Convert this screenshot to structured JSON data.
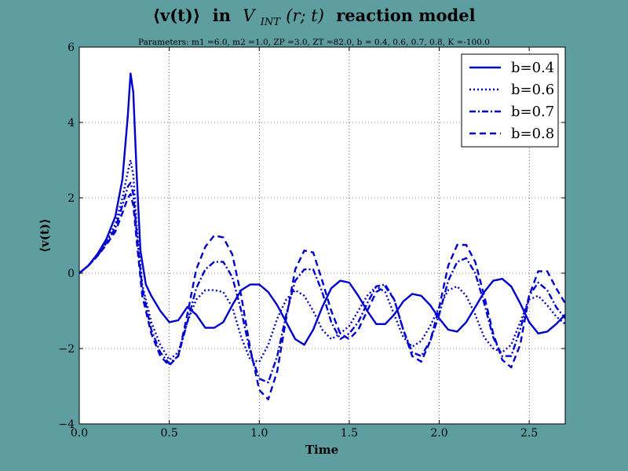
{
  "chart_data": {
    "type": "line",
    "title": "⟨v(t)⟩ in V_INT(r;t) reaction model",
    "title_parts": {
      "lead": "⟨v(t)⟩",
      "mid": "in",
      "v": "V",
      "sub": "INT",
      "arg": "(r; t)",
      "tail": "reaction model"
    },
    "subtitle": "Parameters: m1 =6.0, m2 =1.0, ZP =3.0, ZT =82.0, b = 0.4, 0.6, 0.7, 0.8, K =-100.0",
    "xlabel": "Time",
    "ylabel": "⟨v(t)⟩",
    "xlim": [
      0,
      2.7
    ],
    "ylim": [
      -4,
      6
    ],
    "xticks": [
      "0.0",
      "0.5",
      "1.0",
      "1.5",
      "2.0",
      "2.5"
    ],
    "yticks": [
      "−4",
      "−2",
      "0",
      "2",
      "4",
      "6"
    ],
    "grid": true,
    "legend_position": "top-right",
    "line_color": "#0000cc",
    "background_color": "#5f9ea0",
    "series": [
      {
        "name": "b=0.4",
        "dash": "solid",
        "x": [
          0,
          0.05,
          0.1,
          0.15,
          0.2,
          0.24,
          0.27,
          0.285,
          0.3,
          0.32,
          0.34,
          0.37,
          0.4,
          0.45,
          0.5,
          0.55,
          0.6,
          0.65,
          0.7,
          0.75,
          0.8,
          0.85,
          0.9,
          0.95,
          1.0,
          1.05,
          1.1,
          1.15,
          1.2,
          1.25,
          1.3,
          1.35,
          1.4,
          1.45,
          1.5,
          1.55,
          1.6,
          1.65,
          1.7,
          1.75,
          1.8,
          1.85,
          1.9,
          1.95,
          2.0,
          2.05,
          2.1,
          2.15,
          2.2,
          2.25,
          2.3,
          2.35,
          2.4,
          2.45,
          2.5,
          2.55,
          2.6,
          2.65,
          2.7
        ],
        "values": [
          0,
          0.2,
          0.5,
          0.9,
          1.5,
          2.5,
          4.2,
          5.3,
          4.8,
          2.5,
          0.6,
          -0.3,
          -0.6,
          -1.0,
          -1.3,
          -1.25,
          -0.9,
          -1.1,
          -1.45,
          -1.45,
          -1.3,
          -0.85,
          -0.45,
          -0.3,
          -0.3,
          -0.5,
          -0.85,
          -1.3,
          -1.75,
          -1.9,
          -1.5,
          -0.9,
          -0.4,
          -0.2,
          -0.25,
          -0.6,
          -1.0,
          -1.35,
          -1.35,
          -1.1,
          -0.75,
          -0.55,
          -0.6,
          -0.85,
          -1.2,
          -1.5,
          -1.55,
          -1.3,
          -0.9,
          -0.5,
          -0.2,
          -0.15,
          -0.35,
          -0.8,
          -1.3,
          -1.6,
          -1.55,
          -1.35,
          -1.1
        ]
      },
      {
        "name": "b=0.6",
        "dash": "dotted",
        "x": [
          0,
          0.05,
          0.1,
          0.15,
          0.2,
          0.24,
          0.27,
          0.285,
          0.3,
          0.32,
          0.35,
          0.4,
          0.45,
          0.5,
          0.55,
          0.6,
          0.65,
          0.7,
          0.75,
          0.8,
          0.85,
          0.9,
          0.95,
          1.0,
          1.05,
          1.1,
          1.15,
          1.2,
          1.25,
          1.3,
          1.35,
          1.4,
          1.45,
          1.5,
          1.55,
          1.6,
          1.65,
          1.7,
          1.75,
          1.8,
          1.85,
          1.9,
          1.95,
          2.0,
          2.05,
          2.1,
          2.15,
          2.2,
          2.25,
          2.3,
          2.35,
          2.4,
          2.45,
          2.5,
          2.55,
          2.6,
          2.65,
          2.7
        ],
        "values": [
          0,
          0.2,
          0.5,
          0.85,
          1.3,
          2.0,
          2.7,
          3.0,
          2.6,
          1.2,
          -0.3,
          -1.3,
          -1.9,
          -2.3,
          -2.1,
          -1.3,
          -0.7,
          -0.45,
          -0.45,
          -0.5,
          -0.9,
          -1.7,
          -2.3,
          -2.35,
          -1.9,
          -1.2,
          -0.7,
          -0.45,
          -0.6,
          -1.0,
          -1.5,
          -1.75,
          -1.6,
          -1.4,
          -1.0,
          -0.6,
          -0.35,
          -0.5,
          -1.1,
          -1.7,
          -1.95,
          -1.8,
          -1.4,
          -0.9,
          -0.45,
          -0.35,
          -0.6,
          -1.1,
          -1.7,
          -2.0,
          -2.1,
          -1.9,
          -1.3,
          -0.7,
          -0.6,
          -0.85,
          -1.15,
          -1.35
        ]
      },
      {
        "name": "b=0.7",
        "dash": "dashdot",
        "x": [
          0,
          0.05,
          0.1,
          0.15,
          0.2,
          0.24,
          0.27,
          0.285,
          0.3,
          0.32,
          0.35,
          0.4,
          0.45,
          0.5,
          0.55,
          0.6,
          0.65,
          0.7,
          0.75,
          0.8,
          0.85,
          0.9,
          0.95,
          1.0,
          1.05,
          1.1,
          1.15,
          1.2,
          1.25,
          1.3,
          1.35,
          1.4,
          1.45,
          1.5,
          1.55,
          1.6,
          1.65,
          1.7,
          1.75,
          1.8,
          1.85,
          1.9,
          1.95,
          2.0,
          2.05,
          2.1,
          2.15,
          2.2,
          2.25,
          2.3,
          2.35,
          2.4,
          2.45,
          2.5,
          2.55,
          2.6,
          2.65,
          2.7
        ],
        "values": [
          0,
          0.2,
          0.45,
          0.8,
          1.2,
          1.8,
          2.3,
          2.4,
          2.1,
          1.0,
          -0.4,
          -1.5,
          -2.1,
          -2.4,
          -2.2,
          -1.3,
          -0.4,
          0.1,
          0.3,
          0.3,
          -0.1,
          -1.0,
          -2.1,
          -2.8,
          -2.9,
          -2.2,
          -1.1,
          -0.2,
          0.1,
          0.1,
          -0.5,
          -1.3,
          -1.75,
          -1.6,
          -1.3,
          -0.8,
          -0.35,
          -0.3,
          -0.7,
          -1.5,
          -2.1,
          -2.2,
          -1.8,
          -1.1,
          -0.2,
          0.3,
          0.4,
          0.0,
          -0.8,
          -1.7,
          -2.2,
          -2.2,
          -1.5,
          -0.6,
          -0.25,
          -0.45,
          -0.9,
          -1.2
        ]
      },
      {
        "name": "b=0.8",
        "dash": "dashed",
        "x": [
          0,
          0.05,
          0.1,
          0.15,
          0.2,
          0.24,
          0.27,
          0.285,
          0.3,
          0.32,
          0.35,
          0.4,
          0.45,
          0.5,
          0.55,
          0.6,
          0.65,
          0.7,
          0.75,
          0.8,
          0.85,
          0.9,
          0.95,
          1.0,
          1.05,
          1.1,
          1.15,
          1.2,
          1.25,
          1.3,
          1.35,
          1.4,
          1.45,
          1.5,
          1.55,
          1.6,
          1.65,
          1.7,
          1.75,
          1.8,
          1.85,
          1.9,
          1.95,
          2.0,
          2.05,
          2.1,
          2.15,
          2.2,
          2.25,
          2.3,
          2.35,
          2.4,
          2.45,
          2.5,
          2.55,
          2.6,
          2.65,
          2.7
        ],
        "values": [
          0,
          0.2,
          0.45,
          0.75,
          1.1,
          1.6,
          2.0,
          2.1,
          1.8,
          0.8,
          -0.6,
          -1.6,
          -2.2,
          -2.45,
          -2.2,
          -1.1,
          0.1,
          0.7,
          1.0,
          0.95,
          0.5,
          -0.6,
          -2.0,
          -3.1,
          -3.35,
          -2.6,
          -1.2,
          0.1,
          0.6,
          0.55,
          -0.2,
          -1.0,
          -1.6,
          -1.75,
          -1.5,
          -1.0,
          -0.5,
          -0.35,
          -0.7,
          -1.5,
          -2.2,
          -2.35,
          -1.8,
          -0.9,
          0.2,
          0.75,
          0.75,
          0.3,
          -0.6,
          -1.6,
          -2.3,
          -2.5,
          -1.9,
          -0.6,
          0.05,
          0.05,
          -0.4,
          -0.8
        ]
      }
    ]
  }
}
